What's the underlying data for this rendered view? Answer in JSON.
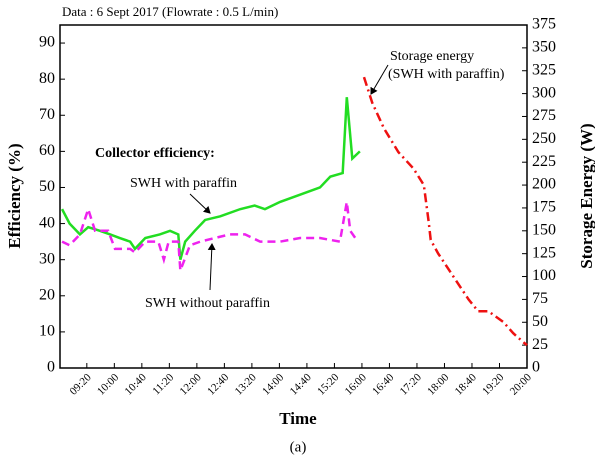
{
  "chart_data": {
    "type": "line",
    "title": "Data : 6 Sept 2017 (Flowrate : 0.5 L/min)",
    "subtitle": "(a)",
    "x_label": "Time",
    "y_label": "Efficiency (%)",
    "y2_label": "Storage Energy (W)",
    "annotations": [
      "Collector efficiency:",
      "SWH with paraffin",
      "SWH without paraffin",
      "Storage energy",
      "(SWH with paraffin)"
    ],
    "xlim": [
      521,
      1200
    ],
    "xticks": [
      {
        "value": 560,
        "label": "09:20"
      },
      {
        "value": 600,
        "label": "10:00"
      },
      {
        "value": 640,
        "label": "10:40"
      },
      {
        "value": 680,
        "label": "11:20"
      },
      {
        "value": 720,
        "label": "12:00"
      },
      {
        "value": 760,
        "label": "12:40"
      },
      {
        "value": 800,
        "label": "13:20"
      },
      {
        "value": 840,
        "label": "14:00"
      },
      {
        "value": 880,
        "label": "14:40"
      },
      {
        "value": 920,
        "label": "15:20"
      },
      {
        "value": 960,
        "label": "16:00"
      },
      {
        "value": 1000,
        "label": "16:40"
      },
      {
        "value": 1040,
        "label": "17:20"
      },
      {
        "value": 1080,
        "label": "18:00"
      },
      {
        "value": 1120,
        "label": "18:40"
      },
      {
        "value": 1160,
        "label": "19:20"
      },
      {
        "value": 1200,
        "label": "20:00"
      }
    ],
    "ylim": [
      0,
      95
    ],
    "yticks": [
      0,
      10,
      20,
      30,
      40,
      50,
      60,
      70,
      80,
      90
    ],
    "y2lim": [
      0,
      375
    ],
    "y2ticks": [
      0,
      25,
      50,
      75,
      100,
      125,
      150,
      175,
      200,
      225,
      250,
      275,
      300,
      325,
      350,
      375
    ],
    "series": [
      {
        "name": "SWH with paraffin",
        "color": "#22dd22",
        "dash": "solid",
        "x": [
          524,
          535,
          550,
          562,
          579,
          594,
          608,
          623,
          630,
          645,
          666,
          681,
          693,
          696,
          703,
          717,
          732,
          754,
          783,
          804,
          819,
          841,
          870,
          899,
          914,
          932,
          938,
          946,
          957
        ],
        "values": [
          44,
          40,
          37,
          39,
          38,
          37,
          36,
          35,
          33,
          36,
          37,
          38,
          37,
          30,
          35,
          38,
          41,
          42,
          44,
          45,
          44,
          46,
          48,
          50,
          53,
          54,
          75,
          58,
          60
        ]
      },
      {
        "name": "SWH without paraffin",
        "color": "#ee22ee",
        "dash": "dashed",
        "x": [
          524,
          535,
          550,
          562,
          572,
          591,
          601,
          623,
          630,
          645,
          664,
          672,
          679,
          693,
          696,
          710,
          725,
          746,
          768,
          790,
          812,
          841,
          870,
          899,
          928,
          938,
          943,
          954
        ],
        "values": [
          35,
          34,
          37,
          44,
          38,
          38,
          33,
          33,
          32,
          35,
          35,
          30,
          35,
          35,
          27,
          34,
          35,
          36,
          37,
          37,
          35,
          35,
          36,
          36,
          35,
          46,
          38,
          35
        ]
      },
      {
        "name": "Storage energy",
        "color": "#ee1111",
        "dash": "dashdot",
        "axis": "y2",
        "x": [
          963,
          975,
          992,
          1013,
          1035,
          1050,
          1057,
          1060,
          1071,
          1093,
          1115,
          1129,
          1144,
          1166,
          1180,
          1195,
          1200
        ],
        "values": [
          318,
          290,
          262,
          236,
          218,
          200,
          160,
          140,
          125,
          100,
          75,
          62,
          62,
          50,
          38,
          28,
          25
        ]
      }
    ]
  }
}
